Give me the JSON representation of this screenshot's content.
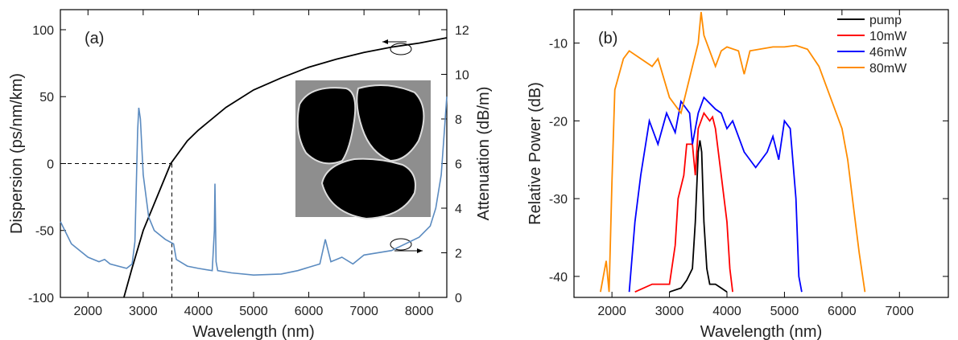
{
  "chart_data": [
    {
      "type": "line",
      "annotations": [
        "(a)"
      ],
      "x_label": "Wavelength (nm)",
      "y_label": "Dispersion (ps/nm/km)",
      "y2_label": "Attenuation (dB/m)",
      "xlim": [
        1500,
        8500
      ],
      "xticks": [
        2000,
        3000,
        4000,
        5000,
        6000,
        7000,
        8000
      ],
      "ylim": [
        -100,
        115
      ],
      "yticks": [
        -100,
        -50,
        0,
        50,
        100
      ],
      "y2lim": [
        0,
        12.9
      ],
      "y2ticks": [
        0,
        2,
        4,
        6,
        8,
        10,
        12
      ],
      "reference_point": {
        "x": 3520,
        "y": 0
      },
      "series": [
        {
          "color": "#000000",
          "x": [
            2650,
            2800,
            3000,
            3200,
            3500,
            3800,
            4000,
            4500,
            5000,
            5500,
            6000,
            6500,
            7000,
            7500,
            8000,
            8500
          ],
          "values": [
            -100,
            -78,
            -50,
            -30,
            0,
            17,
            25,
            42,
            55,
            64,
            72,
            78,
            83,
            87,
            90,
            94
          ]
        },
        {
          "color": "#5b8bc0",
          "axis": "y2",
          "x": [
            1500,
            1700,
            2000,
            2200,
            2300,
            2400,
            2700,
            2800,
            2850,
            2900,
            2920,
            2950,
            3000,
            3100,
            3200,
            3400,
            3550,
            3600,
            3800,
            4000,
            4250,
            4290,
            4300,
            4320,
            4350,
            4600,
            5000,
            5500,
            5800,
            6000,
            6200,
            6300,
            6400,
            6600,
            6800,
            7000,
            7500,
            8000,
            8200,
            8300,
            8400,
            8500
          ],
          "values": [
            3.4,
            2.4,
            1.8,
            1.6,
            1.7,
            1.5,
            1.3,
            1.5,
            2.5,
            7.5,
            8.5,
            8.0,
            5.5,
            3.6,
            3.0,
            2.6,
            2.4,
            1.7,
            1.4,
            1.3,
            1.2,
            3.0,
            5.1,
            1.6,
            1.2,
            1.1,
            1.0,
            1.05,
            1.2,
            1.35,
            1.5,
            2.6,
            1.6,
            1.8,
            1.5,
            1.9,
            2.1,
            2.7,
            3.2,
            4.0,
            5.5,
            9.0
          ]
        }
      ]
    },
    {
      "type": "line",
      "annotations": [
        "(b)"
      ],
      "x_label": "Wavelength (nm)",
      "y_label": "Relative Power (dB)",
      "xlim": [
        1340,
        7850
      ],
      "xticks": [
        2000,
        3000,
        4000,
        5000,
        6000,
        7000
      ],
      "ylim": [
        -42.7,
        -5.7
      ],
      "yticks": [
        -40,
        -30,
        -20,
        -10
      ],
      "legend": "top-right",
      "series": [
        {
          "name": "pump",
          "color": "#000000",
          "x": [
            3000,
            3200,
            3300,
            3400,
            3450,
            3500,
            3530,
            3560,
            3600,
            3650,
            3700,
            3800,
            3900,
            4000
          ],
          "values": [
            -42,
            -41.5,
            -40.5,
            -39,
            -33,
            -24,
            -22.5,
            -24,
            -33,
            -39,
            -41,
            -41,
            -41.5,
            -42
          ]
        },
        {
          "name": "10mW",
          "color": "#ff0000",
          "x": [
            2400,
            2700,
            3000,
            3100,
            3150,
            3250,
            3300,
            3400,
            3450,
            3500,
            3600,
            3700,
            3750,
            3800,
            3900,
            4000,
            4050,
            4100
          ],
          "values": [
            -42,
            -41,
            -41,
            -36,
            -30,
            -27,
            -23,
            -23,
            -27,
            -21,
            -19,
            -20,
            -19.5,
            -21,
            -27,
            -33,
            -39,
            -42
          ]
        },
        {
          "name": "46mW",
          "color": "#0000ff",
          "x": [
            2300,
            2400,
            2500,
            2650,
            2800,
            2950,
            3100,
            3200,
            3350,
            3400,
            3500,
            3600,
            3800,
            3900,
            4000,
            4100,
            4300,
            4500,
            4700,
            4800,
            4900,
            5000,
            5100,
            5200,
            5250,
            5300
          ],
          "values": [
            -42,
            -33,
            -27,
            -20,
            -23,
            -19,
            -21.5,
            -17.5,
            -19,
            -23,
            -19,
            -17,
            -18.5,
            -19,
            -21,
            -20,
            -24,
            -26,
            -24,
            -22,
            -25,
            -20,
            -21,
            -30,
            -40,
            -42
          ]
        },
        {
          "name": "80mW",
          "color": "#ff8c00",
          "x": [
            1800,
            1900,
            1950,
            2000,
            2050,
            2200,
            2300,
            2500,
            2700,
            2800,
            3000,
            3200,
            3400,
            3500,
            3550,
            3600,
            3800,
            3900,
            4000,
            4200,
            4300,
            4400,
            4800,
            5000,
            5200,
            5400,
            5600,
            5800,
            6000,
            6100,
            6200,
            6300,
            6400
          ],
          "values": [
            -42,
            -38,
            -42,
            -28,
            -16,
            -12,
            -11,
            -12,
            -13,
            -12,
            -17,
            -19,
            -13,
            -10,
            -6,
            -9,
            -13,
            -11,
            -10.5,
            -11,
            -14,
            -11,
            -10.5,
            -10.5,
            -10.3,
            -10.8,
            -13,
            -17,
            -21,
            -25,
            -31,
            -37,
            -42
          ]
        }
      ]
    }
  ]
}
